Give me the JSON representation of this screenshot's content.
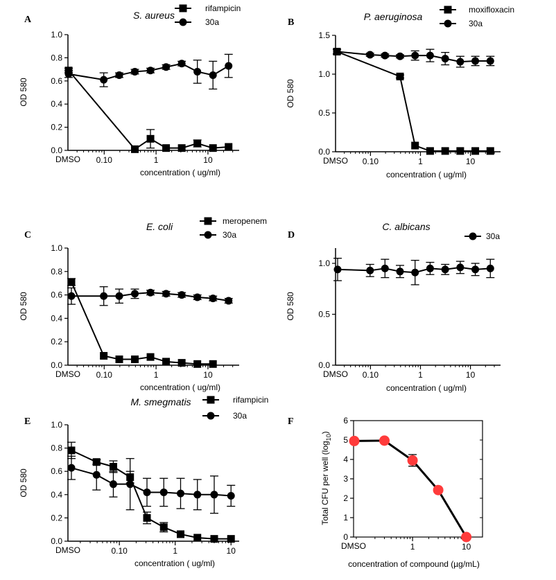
{
  "chart_data": [
    {
      "type": "line",
      "panel_label": "A",
      "title": "S. aureus",
      "xlabel": "concentration ( ug/ml)",
      "ylabel": "OD 580",
      "x_scale": "log",
      "control_label": "DMSO",
      "x_ticks": [
        {
          "value": 0.1,
          "label": "0.10"
        },
        {
          "value": 1,
          "label": "1"
        },
        {
          "value": 10,
          "label": "10"
        }
      ],
      "y_ticks": [
        {
          "value": 0,
          "label": "0.0"
        },
        {
          "value": 0.2,
          "label": "0.2"
        },
        {
          "value": 0.4,
          "label": "0.4"
        },
        {
          "value": 0.6,
          "label": "0.6"
        },
        {
          "value": 0.8,
          "label": "0.8"
        },
        {
          "value": 1.0,
          "label": "1.0"
        }
      ],
      "xlim": [
        0.02,
        40
      ],
      "ylim": [
        0,
        1.0
      ],
      "series": [
        {
          "name": "rifampicin",
          "marker": "square",
          "x": [
            "DMSO",
            0.39,
            0.78,
            1.56,
            3.125,
            6.25,
            12.5,
            25
          ],
          "y": [
            0.69,
            0.01,
            0.1,
            0.02,
            0.02,
            0.06,
            0.02,
            0.03
          ],
          "err": [
            0.02,
            0.01,
            0.08,
            0.01,
            0.01,
            0.03,
            0.01,
            0.01
          ]
        },
        {
          "name": "30a",
          "marker": "circle",
          "x": [
            "DMSO",
            0.098,
            0.195,
            0.39,
            0.78,
            1.56,
            3.125,
            6.25,
            12.5,
            25
          ],
          "y": [
            0.66,
            0.61,
            0.65,
            0.68,
            0.69,
            0.72,
            0.75,
            0.68,
            0.65,
            0.73
          ],
          "err": [
            0.03,
            0.06,
            0.02,
            0.02,
            0.02,
            0.02,
            0.02,
            0.1,
            0.12,
            0.1
          ]
        }
      ]
    },
    {
      "type": "line",
      "panel_label": "B",
      "title": "P. aeruginosa",
      "xlabel": "concentration ( ug/ml)",
      "ylabel": "OD 580",
      "x_scale": "log",
      "control_label": "DMSO",
      "x_ticks": [
        {
          "value": 0.1,
          "label": "0.10"
        },
        {
          "value": 1,
          "label": "1"
        },
        {
          "value": 10,
          "label": "10"
        }
      ],
      "y_ticks": [
        {
          "value": 0,
          "label": "0.0"
        },
        {
          "value": 0.5,
          "label": "0.5"
        },
        {
          "value": 1.0,
          "label": "1.0"
        },
        {
          "value": 1.5,
          "label": "1.5"
        }
      ],
      "xlim": [
        0.02,
        40
      ],
      "ylim": [
        0,
        1.5
      ],
      "series": [
        {
          "name": "moxifloxacin",
          "marker": "square",
          "x": [
            "DMSO",
            0.39,
            0.78,
            1.56,
            3.125,
            6.25,
            12.5,
            25
          ],
          "y": [
            1.29,
            0.97,
            0.08,
            0.01,
            0.01,
            0.01,
            0.01,
            0.01
          ],
          "err": [
            0.03,
            0.02,
            0.01,
            0.01,
            0.01,
            0.01,
            0.01,
            0.01
          ]
        },
        {
          "name": "30a",
          "marker": "circle",
          "x": [
            "DMSO",
            0.098,
            0.195,
            0.39,
            0.78,
            1.56,
            3.125,
            6.25,
            12.5,
            25
          ],
          "y": [
            1.29,
            1.25,
            1.24,
            1.23,
            1.24,
            1.24,
            1.2,
            1.16,
            1.17,
            1.17
          ],
          "err": [
            0.03,
            0.02,
            0.02,
            0.02,
            0.06,
            0.08,
            0.08,
            0.07,
            0.06,
            0.06
          ]
        }
      ]
    },
    {
      "type": "line",
      "panel_label": "C",
      "title": "E. coli",
      "xlabel": "concentration ( ug/ml)",
      "ylabel": "OD 580",
      "x_scale": "log",
      "control_label": "DMSO",
      "x_ticks": [
        {
          "value": 0.1,
          "label": "0.10"
        },
        {
          "value": 1,
          "label": "1"
        },
        {
          "value": 10,
          "label": "10"
        }
      ],
      "y_ticks": [
        {
          "value": 0,
          "label": "0.0"
        },
        {
          "value": 0.2,
          "label": "0.2"
        },
        {
          "value": 0.4,
          "label": "0.4"
        },
        {
          "value": 0.6,
          "label": "0.6"
        },
        {
          "value": 0.8,
          "label": "0.8"
        },
        {
          "value": 1.0,
          "label": "1.0"
        }
      ],
      "xlim": [
        0.02,
        40
      ],
      "ylim": [
        0,
        1.0
      ],
      "series": [
        {
          "name": "meropenem",
          "marker": "square",
          "x": [
            "DMSO",
            0.098,
            0.195,
            0.39,
            0.78,
            1.56,
            3.125,
            6.25,
            12.5
          ],
          "y": [
            0.71,
            0.08,
            0.05,
            0.05,
            0.07,
            0.03,
            0.02,
            0.01,
            0.01
          ],
          "err": [
            0.03,
            0.01,
            0.01,
            0.01,
            0.01,
            0.01,
            0.01,
            0.01,
            0.01
          ]
        },
        {
          "name": "30a",
          "marker": "circle",
          "x": [
            "DMSO",
            0.098,
            0.195,
            0.39,
            0.78,
            1.56,
            3.125,
            6.25,
            12.5,
            25
          ],
          "y": [
            0.59,
            0.59,
            0.59,
            0.61,
            0.62,
            0.61,
            0.6,
            0.58,
            0.57,
            0.55
          ],
          "err": [
            0.07,
            0.08,
            0.06,
            0.04,
            0.02,
            0.02,
            0.02,
            0.02,
            0.02,
            0.02
          ]
        }
      ]
    },
    {
      "type": "line",
      "panel_label": "D",
      "title": "C. albicans",
      "xlabel": "concentration ( ug/ml)",
      "ylabel": "OD 580",
      "x_scale": "log",
      "control_label": "DMSO",
      "x_ticks": [
        {
          "value": 0.1,
          "label": "0.10"
        },
        {
          "value": 1,
          "label": "1"
        },
        {
          "value": 10,
          "label": "10"
        }
      ],
      "y_ticks": [
        {
          "value": 0,
          "label": "0.0"
        },
        {
          "value": 0.5,
          "label": "0.5"
        },
        {
          "value": 1.0,
          "label": "1.0"
        }
      ],
      "xlim": [
        0.02,
        40
      ],
      "ylim": [
        0,
        1.15
      ],
      "series": [
        {
          "name": "30a",
          "marker": "circle",
          "x": [
            "DMSO",
            0.098,
            0.195,
            0.39,
            0.78,
            1.56,
            3.125,
            6.25,
            12.5,
            25
          ],
          "y": [
            0.94,
            0.93,
            0.95,
            0.92,
            0.91,
            0.95,
            0.94,
            0.96,
            0.94,
            0.95
          ],
          "err": [
            0.11,
            0.06,
            0.09,
            0.06,
            0.12,
            0.06,
            0.05,
            0.06,
            0.06,
            0.09
          ]
        }
      ]
    },
    {
      "type": "line",
      "panel_label": "E",
      "title": "M. smegmatis",
      "xlabel": "concentration ( ug/ml)",
      "ylabel": "OD 580",
      "x_scale": "log",
      "control_label": "DMSO",
      "x_ticks": [
        {
          "value": 0.1,
          "label": "0.10"
        },
        {
          "value": 1,
          "label": "1"
        },
        {
          "value": 10,
          "label": "10"
        }
      ],
      "y_ticks": [
        {
          "value": 0,
          "label": "0.0"
        },
        {
          "value": 0.2,
          "label": "0.2"
        },
        {
          "value": 0.4,
          "label": "0.4"
        },
        {
          "value": 0.6,
          "label": "0.6"
        },
        {
          "value": 0.8,
          "label": "0.8"
        },
        {
          "value": 1.0,
          "label": "1.0"
        }
      ],
      "xlim": [
        0.012,
        14
      ],
      "ylim": [
        0,
        1.0
      ],
      "series": [
        {
          "name": "rifampicin",
          "marker": "square",
          "x": [
            "DMSO",
            0.039,
            0.078,
            0.156,
            0.3125,
            0.625,
            1.25,
            2.5,
            5,
            10
          ],
          "y": [
            0.78,
            0.68,
            0.64,
            0.55,
            0.2,
            0.12,
            0.06,
            0.03,
            0.02,
            0.02
          ],
          "err": [
            0.07,
            0.02,
            0.05,
            0.05,
            0.05,
            0.04,
            0.01,
            0.01,
            0.01,
            0.01
          ]
        },
        {
          "name": "30a",
          "marker": "circle",
          "x": [
            "DMSO",
            0.039,
            0.078,
            0.156,
            0.3125,
            0.625,
            1.25,
            2.5,
            5,
            10
          ],
          "y": [
            0.63,
            0.57,
            0.49,
            0.49,
            0.42,
            0.42,
            0.41,
            0.4,
            0.4,
            0.39
          ],
          "err": [
            0.1,
            0.13,
            0.11,
            0.22,
            0.12,
            0.12,
            0.13,
            0.13,
            0.16,
            0.09
          ]
        }
      ]
    },
    {
      "type": "line",
      "panel_label": "F",
      "title": "",
      "xlabel": "concentration of compound (µg/mL)",
      "ylabel": "Total CFU per well (log",
      "ylabel_sub": "10",
      "ylabel_tail": ")",
      "x_scale": "log",
      "control_label": "DMSO",
      "x_ticks": [
        {
          "value": 1,
          "label": "1"
        },
        {
          "value": 10,
          "label": "10"
        }
      ],
      "y_ticks": [
        {
          "value": 0,
          "label": "0"
        },
        {
          "value": 1,
          "label": "1"
        },
        {
          "value": 2,
          "label": "2"
        },
        {
          "value": 3,
          "label": "3"
        },
        {
          "value": 4,
          "label": "4"
        },
        {
          "value": 5,
          "label": "5"
        },
        {
          "value": 6,
          "label": "6"
        }
      ],
      "xlim": [
        0.08,
        20
      ],
      "ylim": [
        0,
        6
      ],
      "series": [
        {
          "name": "",
          "marker": "red-circle",
          "color": "#ff3b3b",
          "x": [
            "DMSO",
            0.3,
            1,
            3,
            10
          ],
          "y": [
            4.95,
            4.97,
            3.95,
            2.42,
            0.0
          ],
          "err": [
            0.1,
            0.05,
            0.3,
            0.05,
            0.05
          ]
        }
      ]
    }
  ]
}
